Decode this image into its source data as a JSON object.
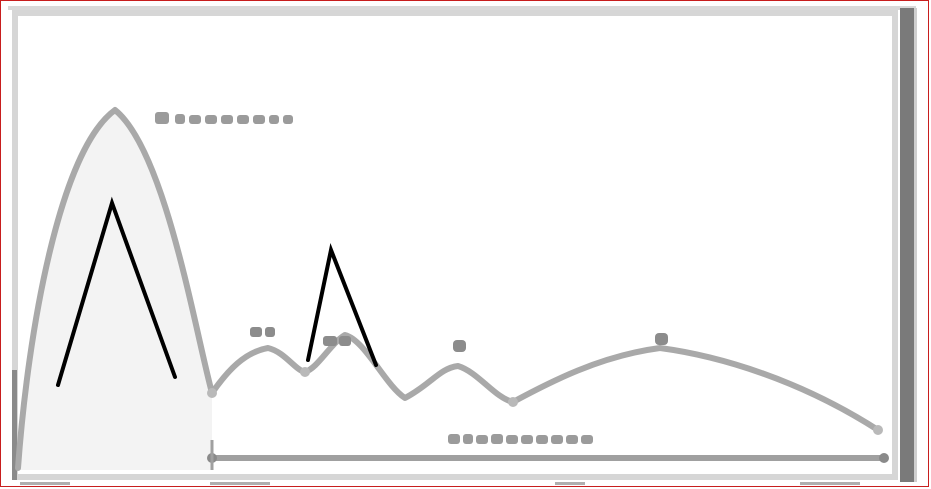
{
  "chart_data": {
    "type": "line",
    "x": [],
    "series": [],
    "annotations": [],
    "title": "",
    "xlabel": "",
    "ylabel": ""
  },
  "colors": {
    "frame_accent": "#c81e1e",
    "curve": "#a9a9a9",
    "ink": "#000000"
  }
}
